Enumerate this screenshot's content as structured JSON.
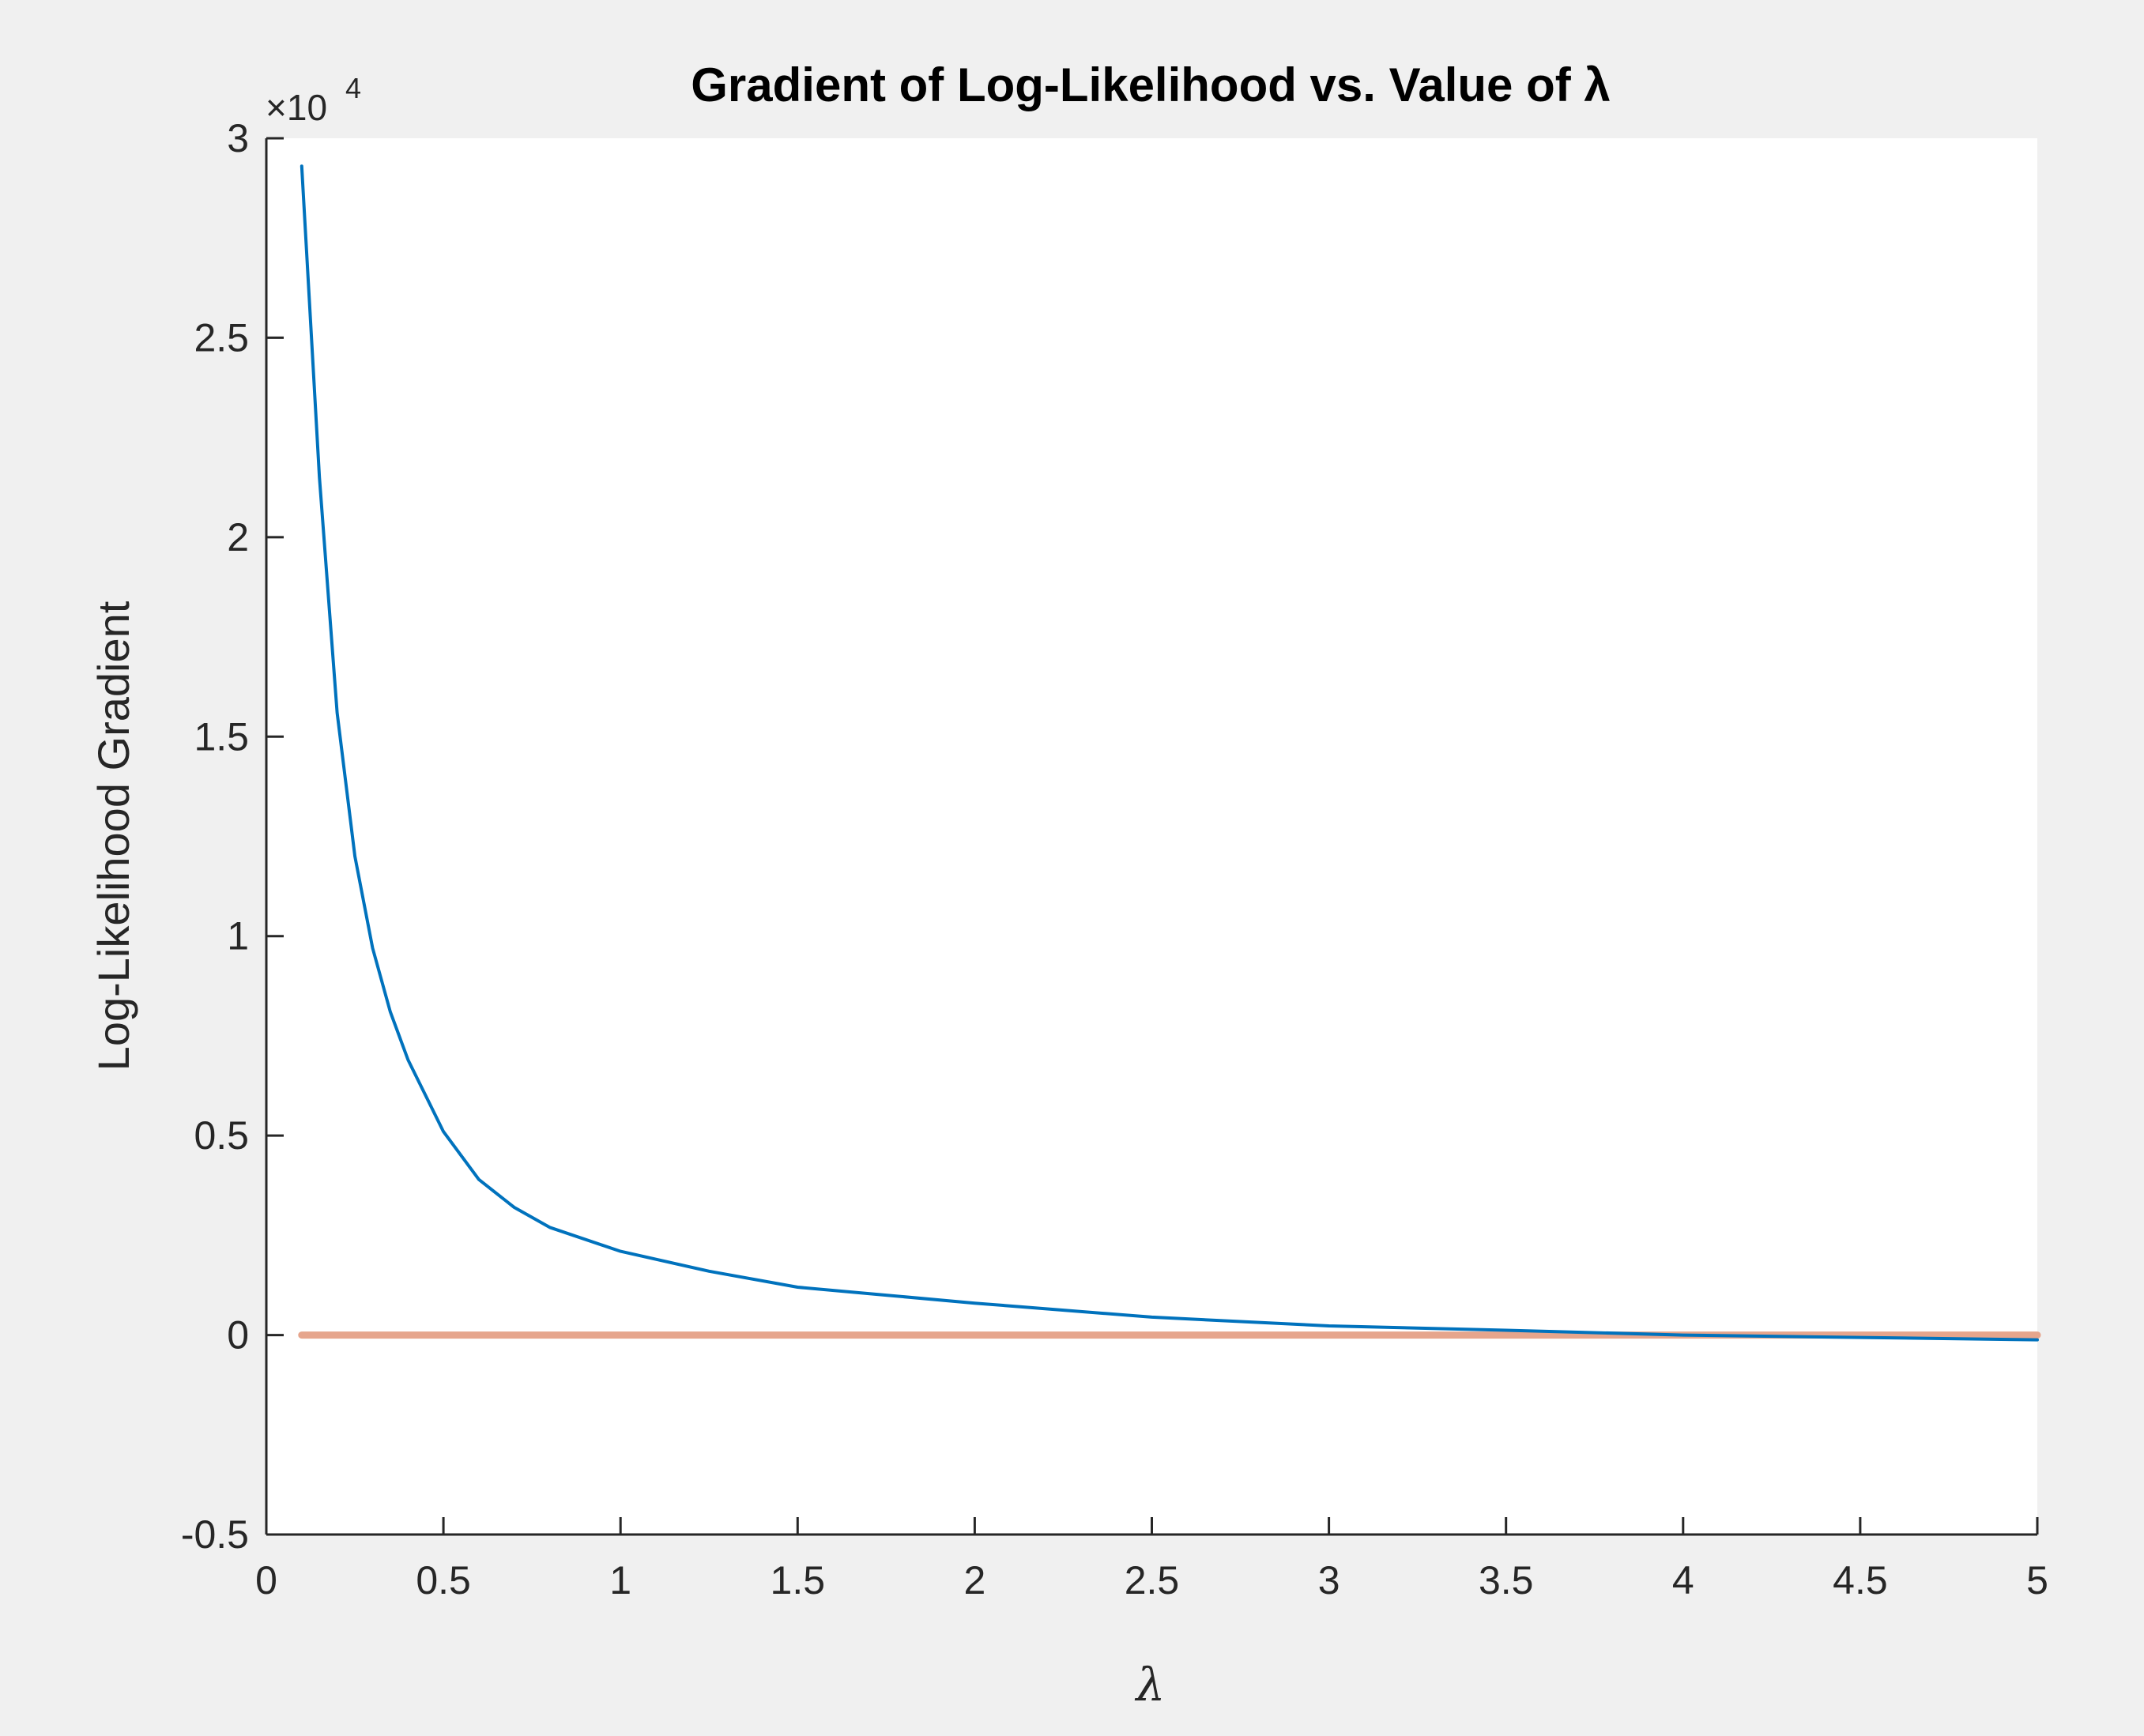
{
  "colors": {
    "figure_background": "#f0f0f0",
    "axes_background": "#ffffff",
    "axis_color": "#262626",
    "series_gradient": "#0072bd",
    "series_zero": "#e6a58c"
  },
  "chart_data": {
    "type": "line",
    "title": "Gradient of Log-Likelihood vs. Value of λ",
    "xlabel": "λ",
    "ylabel": "Log-Likelihood Gradient",
    "y_exponent_base": "×10",
    "y_exponent_power": "4",
    "xlim": [
      0,
      5
    ],
    "ylim": [
      -5000,
      30000
    ],
    "x_ticks": [
      0,
      0.5,
      1,
      1.5,
      2,
      2.5,
      3,
      3.5,
      4,
      4.5,
      5
    ],
    "x_tick_labels": [
      "0",
      "0.5",
      "1",
      "1.5",
      "2",
      "2.5",
      "3",
      "3.5",
      "4",
      "4.5",
      "5"
    ],
    "y_ticks": [
      -5000,
      0,
      5000,
      10000,
      15000,
      20000,
      25000,
      30000
    ],
    "y_tick_labels": [
      "-0.5",
      "0",
      "0.5",
      "1",
      "1.5",
      "2",
      "2.5",
      "3"
    ],
    "grid": false,
    "legend": "none",
    "series": [
      {
        "color": "#0072bd",
        "x": [
          0.1,
          0.15,
          0.2,
          0.25,
          0.3,
          0.35,
          0.4,
          0.5,
          0.6,
          0.7,
          0.8,
          1.0,
          1.25,
          1.5,
          1.75,
          2.0,
          2.5,
          3.0,
          3.5,
          4.0,
          4.5,
          5.0
        ],
        "y": [
          29300,
          21500,
          15600,
          12000,
          9700,
          8100,
          6900,
          5100,
          3900,
          3200,
          2700,
          2100,
          1600,
          1200,
          1000,
          800,
          450,
          230,
          120,
          0,
          -60,
          -120
        ]
      },
      {
        "color": "#e6a58c",
        "x": [
          0.1,
          5.0
        ],
        "y": [
          0,
          0
        ]
      }
    ]
  }
}
